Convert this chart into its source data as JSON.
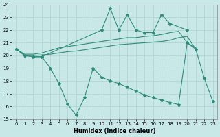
{
  "color": "#2e8b7a",
  "bg_color": "#c8e8e8",
  "grid_color": "#b0d0d0",
  "xlabel": "Humidex (Indice chaleur)",
  "ylim": [
    15,
    24
  ],
  "xlim": [
    -0.5,
    23.5
  ],
  "yticks": [
    15,
    16,
    17,
    18,
    19,
    20,
    21,
    22,
    23,
    24
  ],
  "xticks": [
    0,
    1,
    2,
    3,
    4,
    5,
    6,
    7,
    8,
    9,
    10,
    11,
    12,
    13,
    14,
    15,
    16,
    17,
    18,
    19,
    20,
    21,
    22,
    23
  ],
  "upper_jagged_x": [
    0,
    1,
    2,
    3,
    10,
    11,
    12,
    13,
    14,
    15,
    16,
    17,
    18,
    20
  ],
  "upper_jagged_y": [
    20.5,
    20.0,
    19.9,
    19.9,
    22.0,
    23.7,
    22.0,
    23.2,
    22.0,
    21.8,
    21.8,
    23.2,
    22.5,
    22.0
  ],
  "lower_jagged_x": [
    0,
    1,
    2,
    3,
    4,
    5,
    6,
    7,
    8,
    9,
    20,
    21,
    22,
    23
  ],
  "lower_jagged_y": [
    20.5,
    20.0,
    19.9,
    19.9,
    19.0,
    17.8,
    16.2,
    15.3,
    16.7,
    19.0,
    21.0,
    20.5,
    18.2,
    16.4
  ],
  "lower_line2_x": [
    9,
    10,
    11,
    12,
    13,
    14,
    15,
    16,
    17,
    18,
    19,
    20,
    21,
    22,
    23
  ],
  "lower_line2_y": [
    19.0,
    18.3,
    18.0,
    17.8,
    17.5,
    17.2,
    16.9,
    16.7,
    16.5,
    16.3,
    16.15,
    21.0,
    20.5,
    18.2,
    16.4
  ],
  "smooth_upper_x": [
    0,
    1,
    2,
    3,
    4,
    5,
    6,
    7,
    8,
    9,
    10,
    11,
    12,
    13,
    14,
    15,
    16,
    17,
    18,
    19,
    20,
    21
  ],
  "smooth_upper_y": [
    20.5,
    20.1,
    20.1,
    20.2,
    20.4,
    20.6,
    20.7,
    20.8,
    20.9,
    21.0,
    21.1,
    21.2,
    21.3,
    21.4,
    21.4,
    21.5,
    21.55,
    21.65,
    21.8,
    21.9,
    21.0,
    20.6
  ],
  "smooth_lower_x": [
    0,
    1,
    2,
    3,
    4,
    5,
    6,
    7,
    8,
    9,
    10,
    11,
    12,
    13,
    14,
    15,
    16,
    17,
    18,
    19,
    20,
    21
  ],
  "smooth_lower_y": [
    20.5,
    20.0,
    20.0,
    20.05,
    20.1,
    20.2,
    20.3,
    20.35,
    20.45,
    20.55,
    20.65,
    20.75,
    20.85,
    20.9,
    20.95,
    21.0,
    21.05,
    21.1,
    21.2,
    21.4,
    21.5,
    20.5
  ]
}
